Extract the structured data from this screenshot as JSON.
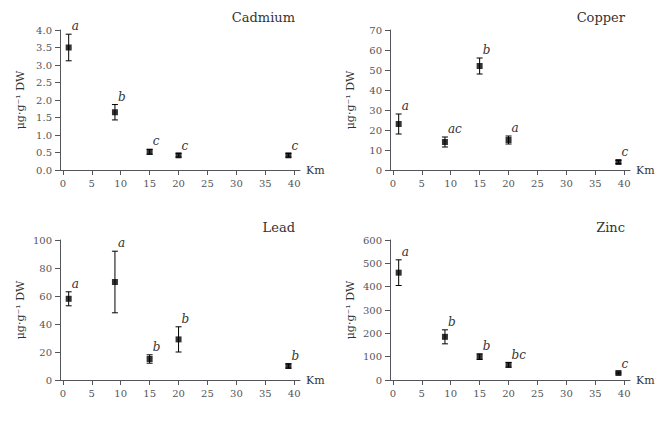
{
  "chart_data": [
    {
      "type": "scatter",
      "title": "Cadmium",
      "ylabel": "μg·g⁻¹ DW",
      "xlabel": "Km",
      "x": [
        1,
        9,
        15,
        20,
        39
      ],
      "values": [
        3.5,
        1.65,
        0.52,
        0.42,
        0.42
      ],
      "yerr": [
        0.38,
        0.22,
        0.07,
        0.05,
        0.05
      ],
      "point_labels": [
        "a",
        "b",
        "c",
        "c",
        "c"
      ],
      "color": "black",
      "marker": "square",
      "grid": false,
      "xlim": [
        -0.5,
        41
      ],
      "xticks": [
        0,
        5,
        10,
        15,
        20,
        25,
        30,
        35,
        40
      ],
      "ylim": [
        0.0,
        4.0
      ],
      "yticks": [
        {
          "value": 0.0,
          "label": "0.0"
        },
        0.5,
        {
          "value": 1.0,
          "label": "1.0"
        },
        1.5,
        {
          "value": 2.0,
          "label": "2.0"
        },
        2.5,
        {
          "value": 3.0,
          "label": "3.0"
        },
        3.5,
        {
          "value": 4.0,
          "label": "4.0"
        }
      ]
    },
    {
      "type": "scatter",
      "title": "Copper",
      "ylabel": "μg·g⁻¹ DW",
      "xlabel": "Km",
      "x": [
        1,
        9,
        15,
        20,
        39
      ],
      "values": [
        23,
        14,
        52,
        15,
        4
      ],
      "yerr": [
        5,
        2.5,
        4,
        2,
        0.8
      ],
      "point_labels": [
        "a",
        "ac",
        "b",
        "a",
        "c"
      ],
      "color": "black",
      "marker": "square",
      "grid": false,
      "xlim": [
        -0.5,
        41
      ],
      "xticks": [
        0,
        5,
        10,
        15,
        20,
        25,
        30,
        35,
        40
      ],
      "ylim": [
        0,
        70
      ],
      "yticks": [
        0,
        10,
        20,
        30,
        40,
        50,
        60,
        70
      ]
    },
    {
      "type": "scatter",
      "title": "Lead",
      "ylabel": "μg·g⁻¹ DW",
      "xlabel": "Km",
      "x": [
        1,
        9,
        15,
        20,
        39
      ],
      "values": [
        58,
        70,
        15,
        29,
        10
      ],
      "yerr": [
        5,
        22,
        3,
        9,
        1.5
      ],
      "point_labels": [
        "a",
        "a",
        "b",
        "b",
        "b"
      ],
      "color": "black",
      "marker": "square",
      "grid": false,
      "xlim": [
        -0.5,
        41
      ],
      "xticks": [
        0,
        5,
        10,
        15,
        20,
        25,
        30,
        35,
        40
      ],
      "ylim": [
        0,
        100
      ],
      "yticks": [
        0,
        20,
        40,
        60,
        80,
        100
      ]
    },
    {
      "type": "scatter",
      "title": "Zinc",
      "ylabel": "μg·g⁻¹ DW",
      "xlabel": "Km",
      "x": [
        1,
        9,
        15,
        20,
        39
      ],
      "values": [
        460,
        185,
        100,
        65,
        30
      ],
      "yerr": [
        55,
        30,
        12,
        10,
        4
      ],
      "point_labels": [
        "a",
        "b",
        "b",
        "bc",
        "c"
      ],
      "color": "black",
      "marker": "square",
      "grid": false,
      "xlim": [
        -0.5,
        41
      ],
      "xticks": [
        0,
        5,
        10,
        15,
        20,
        25,
        30,
        35,
        40
      ],
      "ylim": [
        0,
        600
      ],
      "yticks": [
        0,
        100,
        200,
        300,
        400,
        500,
        600
      ]
    }
  ]
}
